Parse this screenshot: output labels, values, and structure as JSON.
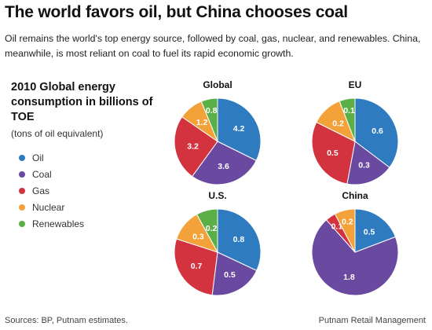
{
  "header": {
    "title": "The world favors oil, but China chooses coal",
    "subtitle": "Oil remains the world's top energy source, followed by coal, gas, nuclear, and renewables. China, meanwhile, is most reliant on coal to fuel its rapid economic growth."
  },
  "legend_heading": "2010 Global energy consumption in billions of TOE",
  "units_note": "(tons of oil equivalent)",
  "legend": [
    {
      "label": "Oil",
      "color": "#2e7bbf"
    },
    {
      "label": "Coal",
      "color": "#6a4aa0"
    },
    {
      "label": "Gas",
      "color": "#d2333f"
    },
    {
      "label": "Nuclear",
      "color": "#f3a23a"
    },
    {
      "label": "Renewables",
      "color": "#5aaf46"
    }
  ],
  "chart_data": [
    {
      "type": "pie",
      "title": "Global",
      "categories": [
        "Oil",
        "Coal",
        "Gas",
        "Nuclear",
        "Renewables"
      ],
      "values": [
        4.2,
        3.6,
        3.2,
        1.2,
        0.8
      ]
    },
    {
      "type": "pie",
      "title": "EU",
      "categories": [
        "Oil",
        "Coal",
        "Gas",
        "Nuclear",
        "Renewables"
      ],
      "values": [
        0.6,
        0.3,
        0.5,
        0.2,
        0.1
      ]
    },
    {
      "type": "pie",
      "title": "U.S.",
      "categories": [
        "Oil",
        "Coal",
        "Gas",
        "Nuclear",
        "Renewables"
      ],
      "values": [
        0.8,
        0.5,
        0.7,
        0.3,
        0.2
      ]
    },
    {
      "type": "pie",
      "title": "China",
      "categories": [
        "Oil",
        "Coal",
        "Gas",
        "Nuclear",
        "Renewables"
      ],
      "values": [
        0.5,
        1.8,
        0.1,
        0.2,
        0
      ]
    }
  ],
  "footer": {
    "sources": "Sources: BP, Putnam estimates.",
    "credit": "Putnam Retail Management"
  }
}
